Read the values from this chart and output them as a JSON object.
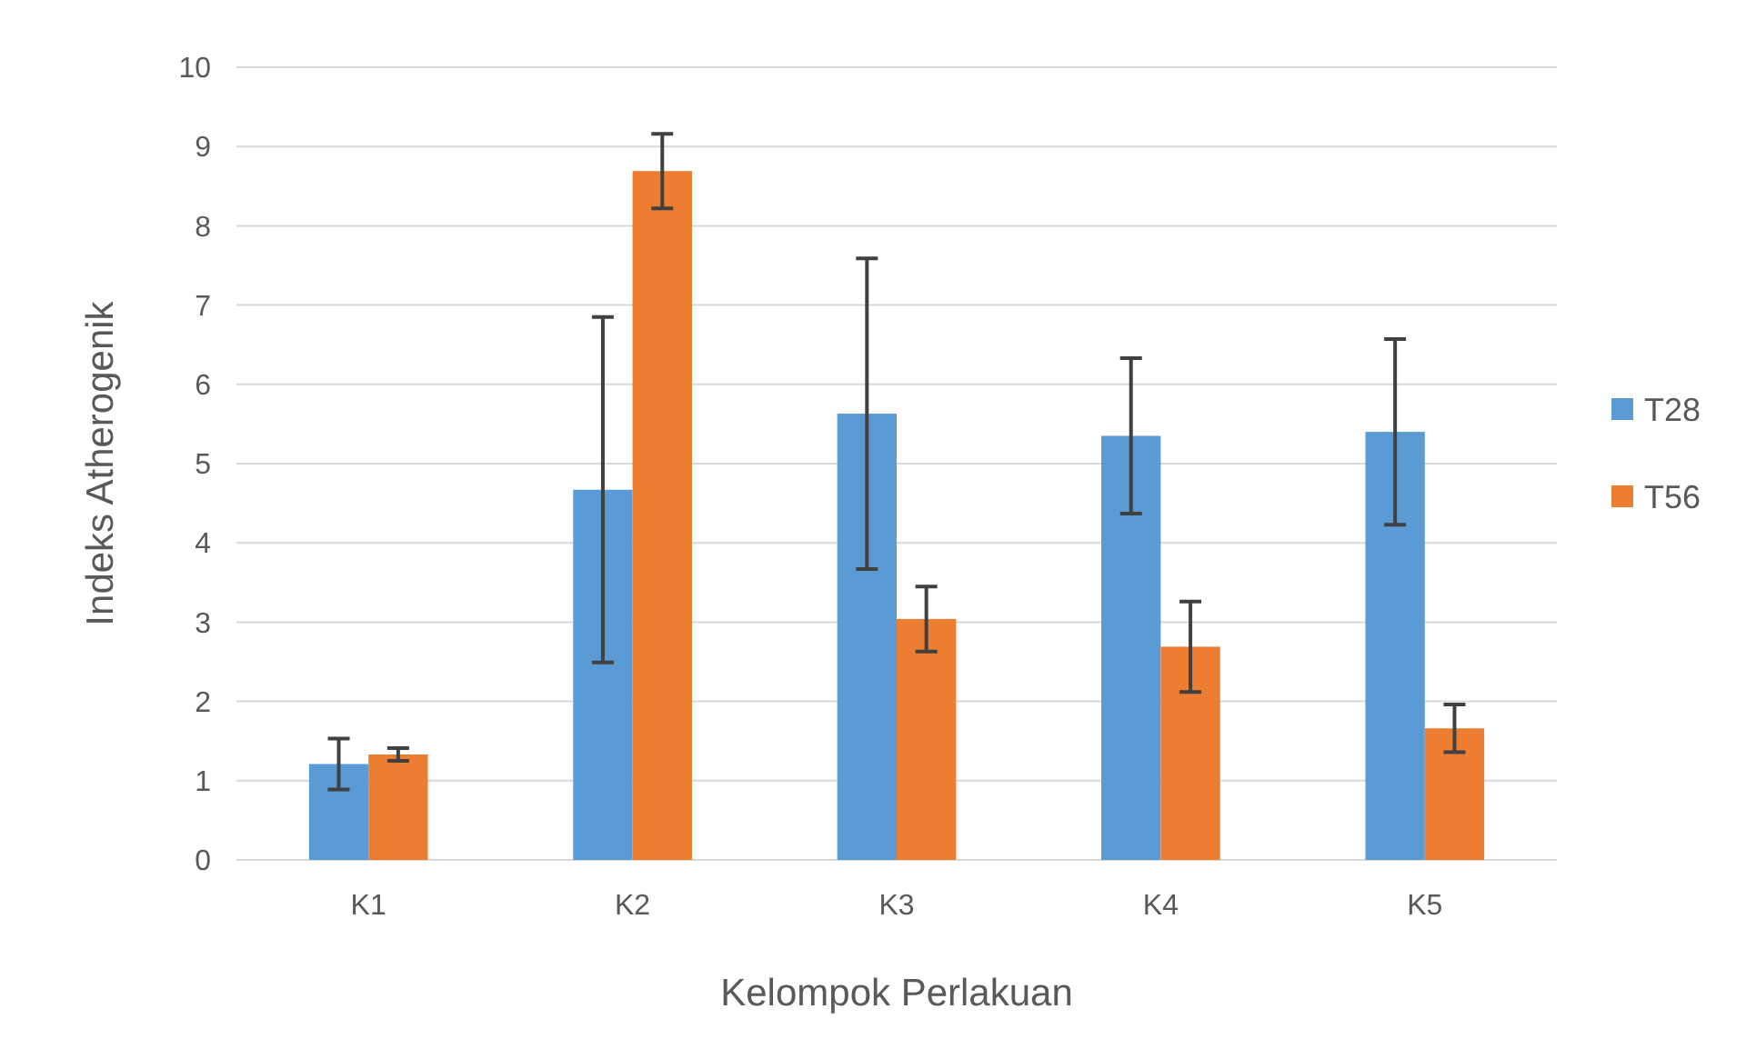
{
  "chart_data": {
    "type": "bar",
    "xlabel": "Kelompok Perlakuan",
    "ylabel": "Indeks Atherogenik",
    "categories": [
      "K1",
      "K2",
      "K3",
      "K4",
      "K5"
    ],
    "series": [
      {
        "name": "T28",
        "color": "#5b9bd5",
        "values": [
          1.21,
          4.67,
          5.63,
          5.35,
          5.4
        ],
        "errors": [
          0.32,
          2.18,
          1.96,
          0.98,
          1.17
        ]
      },
      {
        "name": "T56",
        "color": "#ed7d31",
        "values": [
          1.33,
          8.69,
          3.04,
          2.69,
          1.66
        ],
        "errors": [
          0.08,
          0.47,
          0.41,
          0.57,
          0.3
        ]
      }
    ],
    "ylim": [
      0,
      10
    ],
    "yticks": [
      0,
      1,
      2,
      3,
      4,
      5,
      6,
      7,
      8,
      9,
      10
    ],
    "grid": "y",
    "legend": "right"
  }
}
